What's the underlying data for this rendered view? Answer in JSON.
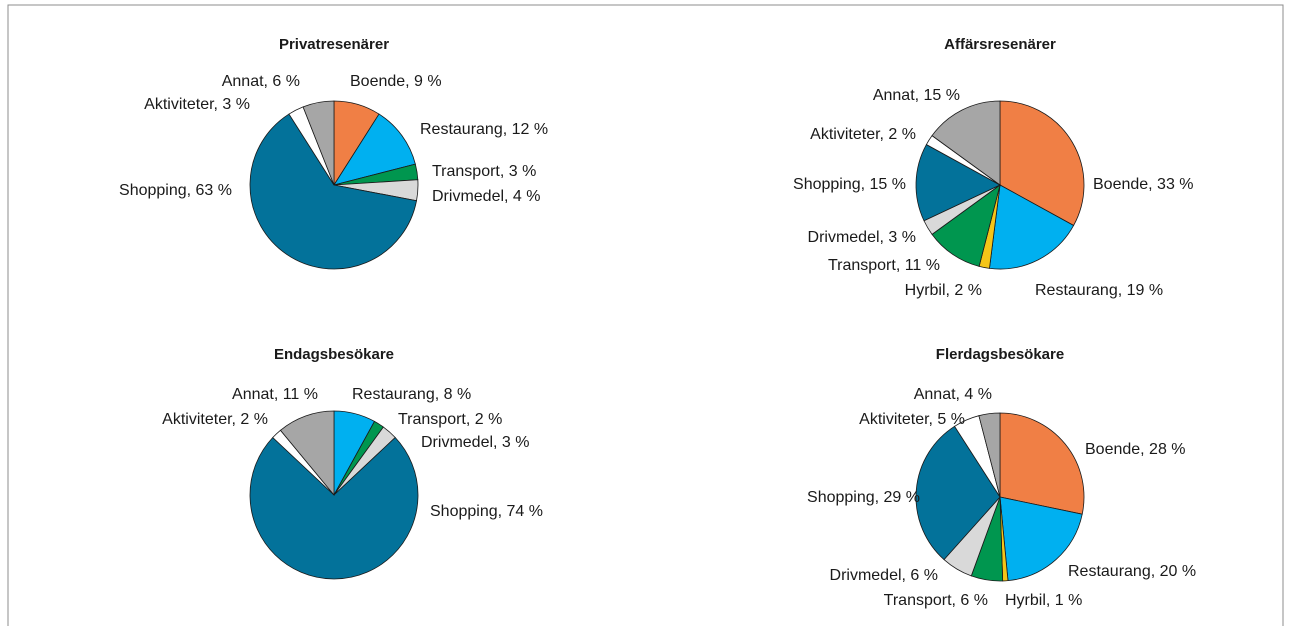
{
  "chart_data": [
    {
      "type": "pie",
      "title": "Privatresenärer",
      "values": [
        9,
        12,
        3,
        4,
        63,
        3,
        6
      ],
      "value_labels": [
        "Boende, 9 %",
        "Restaurang, 12 %",
        "Transport, 3 %",
        "Drivmedel, 4 %",
        "Shopping, 63 %",
        "Aktiviteter, 3 %",
        "Annat, 6 %"
      ],
      "colors": [
        "#f07f45",
        "#00b0f0",
        "#00964f",
        "#d9d9d9",
        "#03729a",
        "#ffffff",
        "#a6a6a6"
      ]
    },
    {
      "type": "pie",
      "title": "Affärsresenärer",
      "values": [
        33,
        19,
        2,
        11,
        3,
        15,
        2,
        15
      ],
      "value_labels": [
        "Boende, 33 %",
        "Restaurang, 19 %",
        "Hyrbil, 2 %",
        "Transport, 11 %",
        "Drivmedel, 3 %",
        "Shopping, 15 %",
        "Aktiviteter, 2 %",
        "Annat, 15 %"
      ],
      "colors": [
        "#f07f45",
        "#00b0f0",
        "#f5c518",
        "#00964f",
        "#d9d9d9",
        "#03729a",
        "#ffffff",
        "#a6a6a6"
      ]
    },
    {
      "type": "pie",
      "title": "Endagsbesökare",
      "values": [
        8,
        2,
        3,
        74,
        2,
        11
      ],
      "value_labels": [
        "Restaurang, 8 %",
        "Transport, 2 %",
        "Drivmedel, 3 %",
        "Shopping, 74 %",
        "Aktiviteter, 2 %",
        "Annat, 11 %"
      ],
      "colors": [
        "#00b0f0",
        "#00964f",
        "#d9d9d9",
        "#03729a",
        "#ffffff",
        "#a6a6a6"
      ]
    },
    {
      "type": "pie",
      "title": "Flerdagsbesökare",
      "values": [
        28,
        20,
        1,
        6,
        6,
        29,
        5,
        4
      ],
      "value_labels": [
        "Boende, 28 %",
        "Restaurang, 20 %",
        "Hyrbil, 1 %",
        "Transport, 6 %",
        "Drivmedel, 6 %",
        "Shopping, 29 %",
        "Aktiviteter, 5 %",
        "Annat, 4 %"
      ],
      "colors": [
        "#f07f45",
        "#00b0f0",
        "#f5c518",
        "#00964f",
        "#d9d9d9",
        "#03729a",
        "#ffffff",
        "#a6a6a6"
      ]
    }
  ]
}
